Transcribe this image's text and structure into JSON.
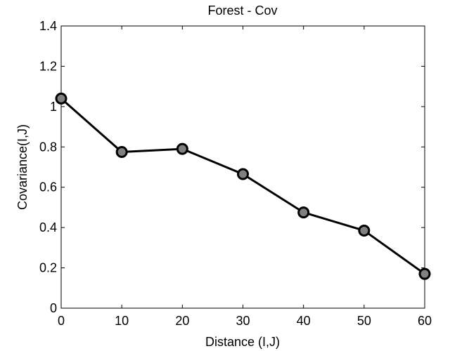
{
  "chart_data": {
    "type": "line",
    "title": "Forest - Cov",
    "xlabel": "Distance (I,J)",
    "ylabel": "Covariance(I,J)",
    "xlim": [
      0,
      60
    ],
    "ylim": [
      0,
      1.4
    ],
    "x_ticks": [
      "0",
      "10",
      "20",
      "30",
      "40",
      "50",
      "60"
    ],
    "y_ticks": [
      "0",
      "0.2",
      "0.4",
      "0.6",
      "0.8",
      "1",
      "1.2",
      "1.4"
    ],
    "grid": false,
    "series": [
      {
        "x": [
          0,
          10,
          20,
          30,
          40,
          50,
          60
        ],
        "y": [
          1.04,
          0.775,
          0.79,
          0.665,
          0.475,
          0.385,
          0.17
        ],
        "color": "#000000",
        "marker_fill": "#808080"
      }
    ]
  }
}
